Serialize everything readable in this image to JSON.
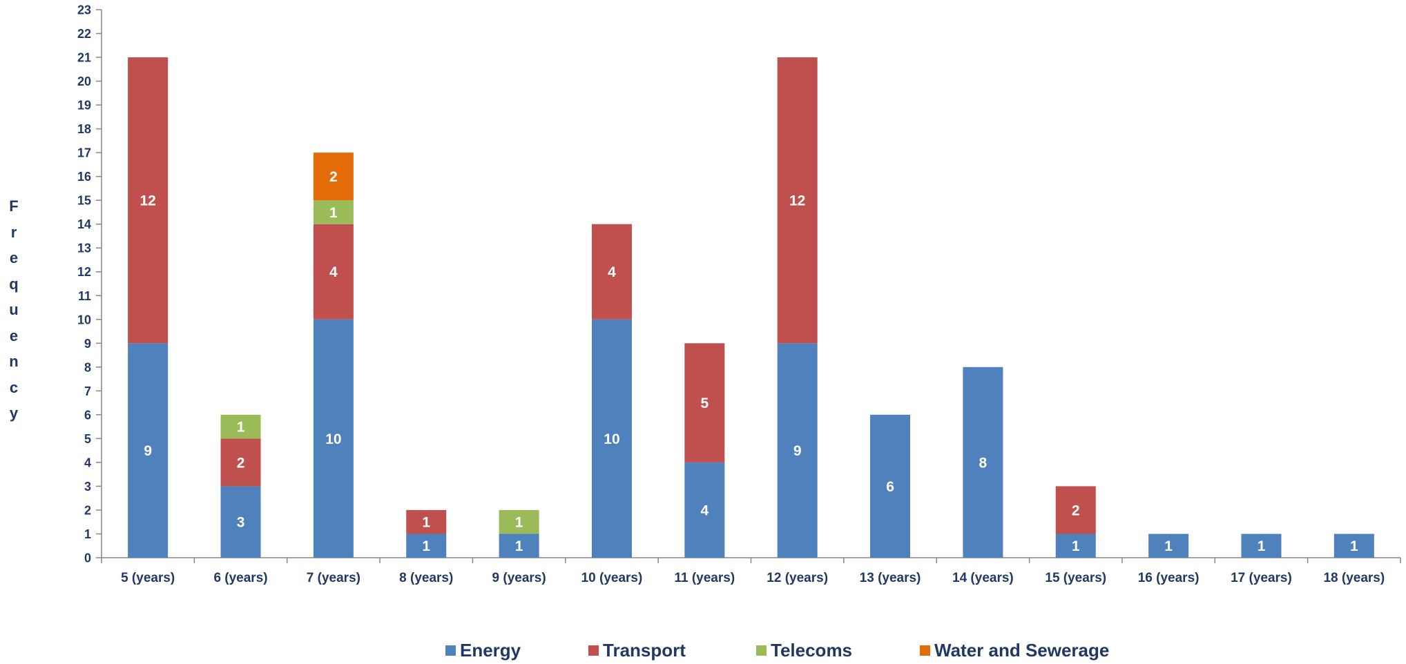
{
  "chart_data": {
    "type": "bar",
    "stacked": true,
    "ylabel": "Frequency",
    "ylim": [
      0,
      23
    ],
    "yticks": [
      0,
      1,
      2,
      3,
      4,
      5,
      6,
      7,
      8,
      9,
      10,
      11,
      12,
      13,
      14,
      15,
      16,
      17,
      18,
      19,
      20,
      21,
      22,
      23
    ],
    "categories": [
      "5 (years)",
      "6 (years)",
      "7 (years)",
      "8 (years)",
      "9 (years)",
      "10 (years)",
      "11 (years)",
      "12 (years)",
      "13 (years)",
      "14 (years)",
      "15 (years)",
      "16 (years)",
      "17 (years)",
      "18 (years)"
    ],
    "series": [
      {
        "name": "Energy",
        "color": "#4f81bd",
        "values": [
          9,
          3,
          10,
          1,
          1,
          10,
          4,
          9,
          6,
          8,
          1,
          1,
          1,
          1
        ]
      },
      {
        "name": "Transport",
        "color": "#c0504d",
        "values": [
          12,
          2,
          4,
          1,
          0,
          4,
          5,
          12,
          0,
          0,
          2,
          0,
          0,
          0
        ]
      },
      {
        "name": "Telecoms",
        "color": "#9bbb59",
        "values": [
          0,
          1,
          1,
          0,
          1,
          0,
          0,
          0,
          0,
          0,
          0,
          0,
          0,
          0
        ]
      },
      {
        "name": "Water and Sewerage",
        "color": "#e36c09",
        "values": [
          0,
          0,
          2,
          0,
          0,
          0,
          0,
          0,
          0,
          0,
          0,
          0,
          0,
          0
        ]
      }
    ],
    "legend_position": "bottom",
    "grid": false,
    "text_color": "#1f3864",
    "axis_color": "#868686"
  }
}
